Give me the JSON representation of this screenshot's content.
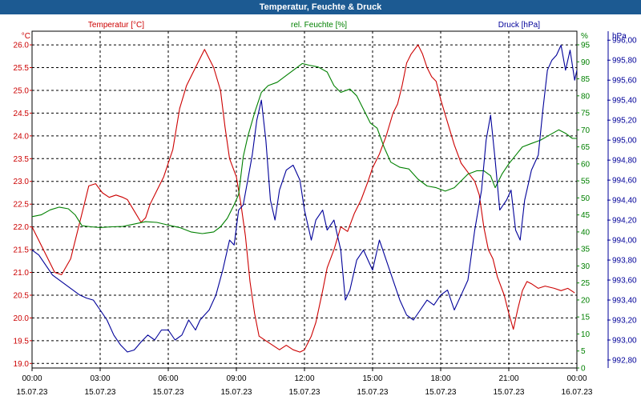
{
  "header": {
    "title": "Temperatur, Feuchte & Druck"
  },
  "chart_data": {
    "type": "line",
    "title": "Temperatur, Feuchte & Druck",
    "x_ticks": [
      {
        "time": "00:00",
        "date": "15.07.23"
      },
      {
        "time": "03:00",
        "date": "15.07.23"
      },
      {
        "time": "06:00",
        "date": "15.07.23"
      },
      {
        "time": "09:00",
        "date": "15.07.23"
      },
      {
        "time": "12:00",
        "date": "15.07.23"
      },
      {
        "time": "15:00",
        "date": "15.07.23"
      },
      {
        "time": "18:00",
        "date": "15.07.23"
      },
      {
        "time": "21:00",
        "date": "15.07.23"
      },
      {
        "time": "00:00",
        "date": "16.07.23"
      }
    ],
    "xlim_hours": [
      0,
      24
    ],
    "grid": true,
    "axes": {
      "temperature": {
        "label": "Temperatur [°C]",
        "unit": "°C",
        "ylim": [
          18.9,
          26.3
        ],
        "ticks": [
          "19.0",
          "19.5",
          "20.0",
          "20.5",
          "21.0",
          "21.5",
          "22.0",
          "22.5",
          "23.0",
          "23.5",
          "24.0",
          "24.5",
          "25.0",
          "25.5",
          "26.0"
        ]
      },
      "humidity": {
        "label": "rel. Feuchte [%]",
        "unit": "%",
        "ylim": [
          0,
          99
        ],
        "ticks": [
          "0",
          "5",
          "10",
          "15",
          "20",
          "25",
          "30",
          "35",
          "40",
          "45",
          "50",
          "55",
          "60",
          "65",
          "70",
          "75",
          "80",
          "85",
          "90",
          "95"
        ]
      },
      "pressure": {
        "label": "Druck [hPa]",
        "unit": "hPa",
        "ylim": [
          992.72,
          996.09
        ],
        "ticks": [
          "992,80",
          "993,00",
          "993,20",
          "993,40",
          "993,60",
          "993,80",
          "994,00",
          "994,20",
          "994,40",
          "994,60",
          "994,80",
          "995,00",
          "995,20",
          "995,40",
          "995,60",
          "995,80",
          "996,00"
        ]
      }
    },
    "series": [
      {
        "name": "Temperatur [°C]",
        "axis": "temperature",
        "color": "#cc0000",
        "points": [
          [
            0,
            22.0
          ],
          [
            0.5,
            21.5
          ],
          [
            1,
            21.0
          ],
          [
            1.3,
            20.95
          ],
          [
            1.7,
            21.3
          ],
          [
            2.0,
            21.9
          ],
          [
            2.3,
            22.5
          ],
          [
            2.5,
            22.9
          ],
          [
            2.8,
            22.95
          ],
          [
            3.1,
            22.75
          ],
          [
            3.4,
            22.65
          ],
          [
            3.7,
            22.7
          ],
          [
            4.0,
            22.65
          ],
          [
            4.2,
            22.6
          ],
          [
            4.5,
            22.35
          ],
          [
            4.8,
            22.1
          ],
          [
            5.0,
            22.2
          ],
          [
            5.2,
            22.5
          ],
          [
            5.5,
            22.8
          ],
          [
            5.8,
            23.1
          ],
          [
            6.2,
            23.7
          ],
          [
            6.5,
            24.6
          ],
          [
            6.8,
            25.1
          ],
          [
            7.0,
            25.3
          ],
          [
            7.3,
            25.6
          ],
          [
            7.6,
            25.9
          ],
          [
            7.8,
            25.7
          ],
          [
            8.0,
            25.5
          ],
          [
            8.3,
            25.0
          ],
          [
            8.5,
            24.2
          ],
          [
            8.7,
            23.5
          ],
          [
            9.0,
            23.1
          ],
          [
            9.2,
            22.5
          ],
          [
            9.4,
            21.8
          ],
          [
            9.6,
            20.8
          ],
          [
            9.8,
            20.1
          ],
          [
            10.0,
            19.6
          ],
          [
            10.3,
            19.5
          ],
          [
            10.6,
            19.4
          ],
          [
            10.9,
            19.3
          ],
          [
            11.2,
            19.4
          ],
          [
            11.5,
            19.3
          ],
          [
            11.8,
            19.25
          ],
          [
            12.0,
            19.3
          ],
          [
            12.3,
            19.6
          ],
          [
            12.5,
            19.9
          ],
          [
            12.8,
            20.6
          ],
          [
            13.0,
            21.1
          ],
          [
            13.3,
            21.5
          ],
          [
            13.6,
            22.0
          ],
          [
            13.9,
            21.9
          ],
          [
            14.2,
            22.3
          ],
          [
            14.5,
            22.6
          ],
          [
            14.8,
            23.0
          ],
          [
            15.0,
            23.3
          ],
          [
            15.3,
            23.6
          ],
          [
            15.6,
            24.0
          ],
          [
            15.9,
            24.5
          ],
          [
            16.1,
            24.7
          ],
          [
            16.3,
            25.1
          ],
          [
            16.5,
            25.6
          ],
          [
            16.7,
            25.8
          ],
          [
            17.0,
            26.0
          ],
          [
            17.2,
            25.8
          ],
          [
            17.4,
            25.5
          ],
          [
            17.6,
            25.3
          ],
          [
            17.8,
            25.2
          ],
          [
            18.0,
            24.8
          ],
          [
            18.3,
            24.3
          ],
          [
            18.6,
            23.8
          ],
          [
            18.9,
            23.4
          ],
          [
            19.2,
            23.2
          ],
          [
            19.5,
            23.0
          ],
          [
            19.7,
            22.7
          ],
          [
            19.9,
            22.0
          ],
          [
            20.1,
            21.5
          ],
          [
            20.3,
            21.3
          ],
          [
            20.5,
            20.9
          ],
          [
            20.8,
            20.5
          ],
          [
            21.0,
            20.1
          ],
          [
            21.2,
            19.75
          ],
          [
            21.4,
            20.2
          ],
          [
            21.6,
            20.6
          ],
          [
            21.8,
            20.8
          ],
          [
            22.0,
            20.75
          ],
          [
            22.3,
            20.65
          ],
          [
            22.6,
            20.7
          ],
          [
            23.0,
            20.65
          ],
          [
            23.3,
            20.6
          ],
          [
            23.6,
            20.65
          ],
          [
            23.9,
            20.55
          ]
        ]
      },
      {
        "name": "rel. Feuchte [%]",
        "axis": "humidity",
        "color": "#008000",
        "points": [
          [
            0,
            44.5
          ],
          [
            0.4,
            45
          ],
          [
            0.8,
            46.5
          ],
          [
            1.2,
            47.3
          ],
          [
            1.6,
            46.8
          ],
          [
            1.9,
            45.0
          ],
          [
            2.2,
            41.8
          ],
          [
            2.6,
            41.5
          ],
          [
            3.0,
            41.3
          ],
          [
            3.5,
            41.5
          ],
          [
            4.0,
            41.6
          ],
          [
            4.5,
            42.3
          ],
          [
            5.0,
            43.0
          ],
          [
            5.5,
            42.8
          ],
          [
            6.0,
            42.0
          ],
          [
            6.5,
            41.3
          ],
          [
            7.0,
            40.0
          ],
          [
            7.5,
            39.5
          ],
          [
            8.0,
            40.0
          ],
          [
            8.3,
            41.5
          ],
          [
            8.6,
            44.0
          ],
          [
            8.9,
            48.0
          ],
          [
            9.1,
            51.0
          ],
          [
            9.3,
            62.0
          ],
          [
            9.5,
            68.0
          ],
          [
            9.8,
            75.0
          ],
          [
            10.1,
            81.0
          ],
          [
            10.4,
            83.0
          ],
          [
            10.8,
            84.0
          ],
          [
            11.2,
            86.0
          ],
          [
            11.6,
            88.0
          ],
          [
            11.9,
            89.5
          ],
          [
            12.2,
            89.0
          ],
          [
            12.6,
            88.5
          ],
          [
            13.0,
            87.0
          ],
          [
            13.3,
            83.0
          ],
          [
            13.6,
            81.0
          ],
          [
            14.0,
            82.0
          ],
          [
            14.3,
            80.0
          ],
          [
            14.6,
            76.0
          ],
          [
            14.9,
            72.0
          ],
          [
            15.2,
            70.5
          ],
          [
            15.5,
            65.0
          ],
          [
            15.8,
            60.5
          ],
          [
            16.2,
            59.0
          ],
          [
            16.6,
            58.5
          ],
          [
            17.0,
            55.5
          ],
          [
            17.4,
            53.5
          ],
          [
            17.8,
            53.0
          ],
          [
            18.2,
            52.0
          ],
          [
            18.6,
            53.0
          ],
          [
            18.9,
            55.0
          ],
          [
            19.2,
            57.0
          ],
          [
            19.6,
            58.0
          ],
          [
            19.9,
            58.0
          ],
          [
            20.2,
            56.5
          ],
          [
            20.4,
            53.0
          ],
          [
            20.7,
            57.0
          ],
          [
            21.0,
            60.0
          ],
          [
            21.3,
            62.5
          ],
          [
            21.6,
            65.0
          ],
          [
            22.0,
            66.0
          ],
          [
            22.4,
            67.0
          ],
          [
            22.8,
            68.5
          ],
          [
            23.2,
            70.0
          ],
          [
            23.5,
            69.0
          ],
          [
            23.8,
            67.5
          ],
          [
            24.0,
            67.5
          ]
        ]
      },
      {
        "name": "Druck [hPa]",
        "axis": "pressure",
        "color": "#000099",
        "points": [
          [
            0,
            993.9
          ],
          [
            0.3,
            993.85
          ],
          [
            0.6,
            993.75
          ],
          [
            0.9,
            993.65
          ],
          [
            1.2,
            993.6
          ],
          [
            1.5,
            993.55
          ],
          [
            1.8,
            993.5
          ],
          [
            2.1,
            993.45
          ],
          [
            2.4,
            993.42
          ],
          [
            2.7,
            993.4
          ],
          [
            3.0,
            993.3
          ],
          [
            3.3,
            993.2
          ],
          [
            3.6,
            993.05
          ],
          [
            3.9,
            992.95
          ],
          [
            4.2,
            992.88
          ],
          [
            4.5,
            992.9
          ],
          [
            4.8,
            992.98
          ],
          [
            5.1,
            993.05
          ],
          [
            5.4,
            993.0
          ],
          [
            5.7,
            993.1
          ],
          [
            6.0,
            993.1
          ],
          [
            6.3,
            993.0
          ],
          [
            6.6,
            993.05
          ],
          [
            6.9,
            993.2
          ],
          [
            7.2,
            993.1
          ],
          [
            7.4,
            993.2
          ],
          [
            7.6,
            993.25
          ],
          [
            7.8,
            993.3
          ],
          [
            8.1,
            993.45
          ],
          [
            8.4,
            993.7
          ],
          [
            8.7,
            994.0
          ],
          [
            8.9,
            993.95
          ],
          [
            9.1,
            994.3
          ],
          [
            9.3,
            994.35
          ],
          [
            9.5,
            994.6
          ],
          [
            9.7,
            994.85
          ],
          [
            9.9,
            995.2
          ],
          [
            10.1,
            995.4
          ],
          [
            10.3,
            995.0
          ],
          [
            10.5,
            994.4
          ],
          [
            10.7,
            994.2
          ],
          [
            10.9,
            994.5
          ],
          [
            11.2,
            994.7
          ],
          [
            11.5,
            994.75
          ],
          [
            11.8,
            994.6
          ],
          [
            12.0,
            994.3
          ],
          [
            12.3,
            994.0
          ],
          [
            12.5,
            994.2
          ],
          [
            12.8,
            994.3
          ],
          [
            13.0,
            994.1
          ],
          [
            13.3,
            994.2
          ],
          [
            13.6,
            993.9
          ],
          [
            13.8,
            993.4
          ],
          [
            14.0,
            993.5
          ],
          [
            14.3,
            993.8
          ],
          [
            14.6,
            993.9
          ],
          [
            14.8,
            993.8
          ],
          [
            15.0,
            993.7
          ],
          [
            15.3,
            994.0
          ],
          [
            15.6,
            993.8
          ],
          [
            15.9,
            993.6
          ],
          [
            16.2,
            993.4
          ],
          [
            16.5,
            993.25
          ],
          [
            16.8,
            993.2
          ],
          [
            17.1,
            993.3
          ],
          [
            17.4,
            993.4
          ],
          [
            17.7,
            993.35
          ],
          [
            18.0,
            993.45
          ],
          [
            18.3,
            993.5
          ],
          [
            18.6,
            993.3
          ],
          [
            18.9,
            993.45
          ],
          [
            19.2,
            993.6
          ],
          [
            19.5,
            994.1
          ],
          [
            19.8,
            994.5
          ],
          [
            20.0,
            995.0
          ],
          [
            20.2,
            995.25
          ],
          [
            20.4,
            994.8
          ],
          [
            20.6,
            994.3
          ],
          [
            20.9,
            994.4
          ],
          [
            21.1,
            994.5
          ],
          [
            21.3,
            994.1
          ],
          [
            21.5,
            994.0
          ],
          [
            21.7,
            994.4
          ],
          [
            22.0,
            994.7
          ],
          [
            22.3,
            994.85
          ],
          [
            22.5,
            995.3
          ],
          [
            22.7,
            995.7
          ],
          [
            22.9,
            995.8
          ],
          [
            23.1,
            995.85
          ],
          [
            23.3,
            995.95
          ],
          [
            23.5,
            995.7
          ],
          [
            23.7,
            995.9
          ],
          [
            23.9,
            995.6
          ],
          [
            24.0,
            995.7
          ]
        ]
      }
    ]
  }
}
